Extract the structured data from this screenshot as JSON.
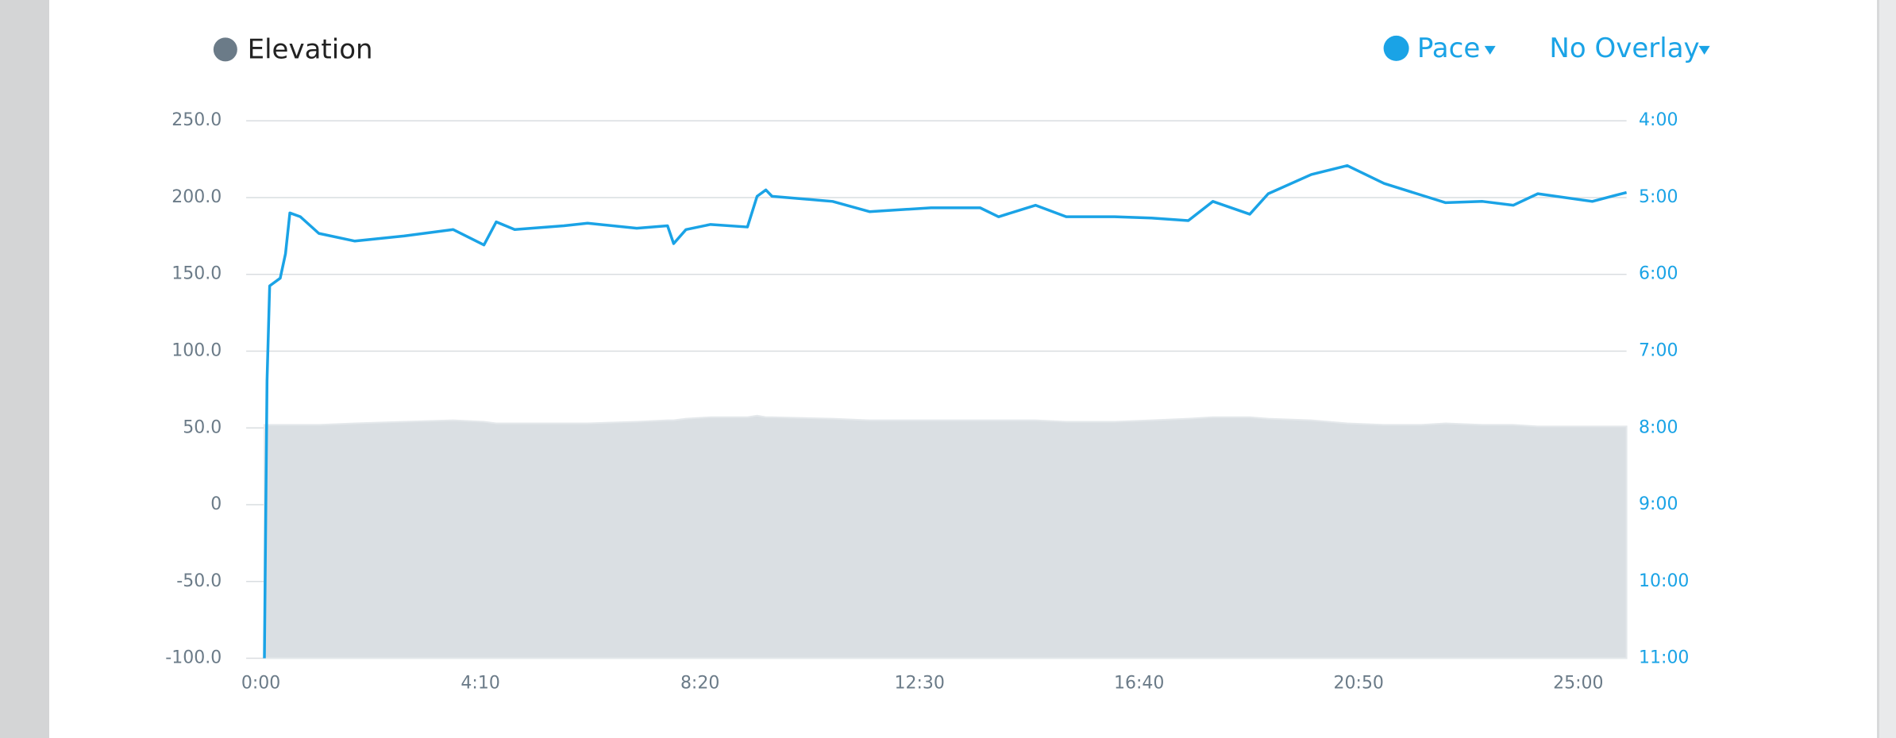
{
  "chart_data": {
    "type": "line",
    "overlay": "No Overlay",
    "x": [
      4,
      7,
      10,
      22,
      28,
      33,
      45,
      66,
      107,
      163,
      219,
      254,
      268,
      289,
      345,
      372,
      428,
      463,
      470,
      484,
      512,
      554,
      565,
      575,
      582,
      651,
      693,
      763,
      819,
      840,
      882,
      917,
      972,
      1014,
      1056,
      1084,
      1126,
      1147,
      1196,
      1237,
      1279,
      1321,
      1349,
      1391,
      1426,
      1454,
      1516,
      1555
    ],
    "xlim": [
      0,
      1555
    ],
    "xticks": [
      {
        "value": 0,
        "label": "0:00"
      },
      {
        "value": 250,
        "label": "4:10"
      },
      {
        "value": 500,
        "label": "8:20"
      },
      {
        "value": 750,
        "label": "12:30"
      },
      {
        "value": 1000,
        "label": "16:40"
      },
      {
        "value": 1250,
        "label": "20:50"
      },
      {
        "value": 1500,
        "label": "25:00"
      }
    ],
    "ylim": [
      -100,
      250
    ],
    "yticks": [
      {
        "value": -100,
        "label": "-100.0"
      },
      {
        "value": -50,
        "label": "-50.0"
      },
      0,
      {
        "value": 50,
        "label": "50.0"
      },
      {
        "value": 100,
        "label": "100.0"
      },
      {
        "value": 150,
        "label": "150.0"
      },
      {
        "value": 200,
        "label": "200.0"
      },
      {
        "value": 250,
        "label": "250.0"
      }
    ],
    "y2lim": [
      660,
      240
    ],
    "y2ticks": [
      {
        "value": 240,
        "label": "4:00"
      },
      {
        "value": 300,
        "label": "5:00"
      },
      {
        "value": 360,
        "label": "6:00"
      },
      {
        "value": 420,
        "label": "7:00"
      },
      {
        "value": 480,
        "label": "8:00"
      },
      {
        "value": 540,
        "label": "9:00"
      },
      {
        "value": 600,
        "label": "10:00"
      },
      {
        "value": 660,
        "label": "11:00"
      }
    ],
    "grid": true,
    "series": [
      {
        "name": "Elevation",
        "type": "area",
        "color": "#dadfe3",
        "legend_color": "#6b7b88",
        "values": [
          52,
          52,
          52,
          52,
          52,
          52,
          52,
          52,
          53,
          54,
          55,
          54,
          53,
          53,
          53,
          53,
          54,
          55,
          55,
          56,
          57,
          57,
          58,
          57,
          57,
          56,
          55,
          55,
          55,
          55,
          55,
          54,
          54,
          55,
          56,
          57,
          57,
          56,
          55,
          53,
          52,
          52,
          53,
          52,
          52,
          51,
          51,
          51
        ]
      },
      {
        "name": "Pace",
        "type": "line",
        "axis": "y2",
        "color": "#1aa3e6",
        "values": [
          660,
          443,
          369,
          363,
          344,
          312,
          315,
          328,
          334,
          330,
          325,
          337,
          319,
          325,
          322,
          320,
          324,
          322,
          336,
          325,
          321,
          323,
          299,
          294,
          299,
          303,
          311,
          308,
          308,
          315,
          306,
          315,
          315,
          316,
          318,
          303,
          313,
          297,
          282,
          275,
          289,
          298,
          304,
          303,
          306,
          297,
          303,
          296
        ]
      }
    ]
  }
}
